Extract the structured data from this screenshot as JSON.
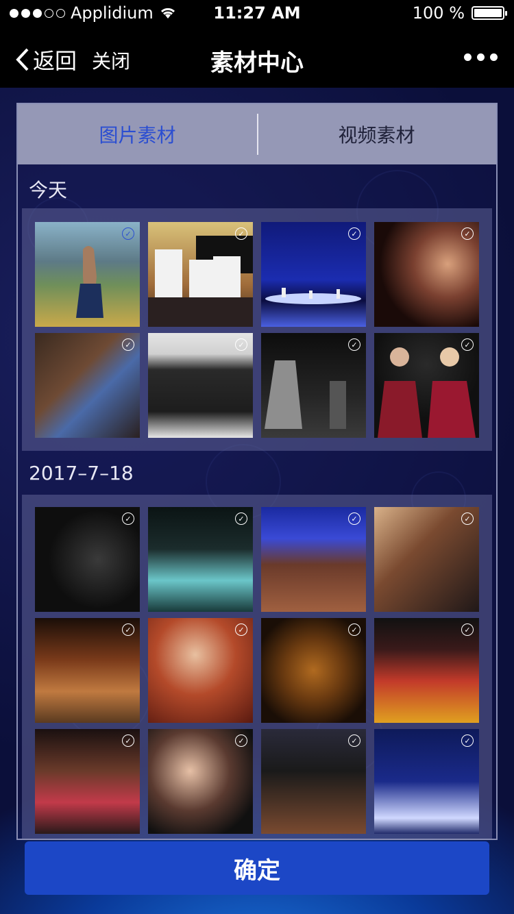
{
  "statusbar": {
    "carrier": "Applidium",
    "time": "11:27 AM",
    "battery": "100 %"
  },
  "navbar": {
    "back_label": "返回",
    "close_label": "关闭",
    "title": "素材中心"
  },
  "tabs": [
    {
      "label": "图片素材"
    },
    {
      "label": "视频素材"
    }
  ],
  "sections": [
    {
      "label": "今天"
    },
    {
      "label": "2017–7–18"
    }
  ],
  "confirm_label": "确定",
  "colors": {
    "accent": "#2b4ed1",
    "button": "#1c47c6",
    "tab_bar": "#9598b6",
    "background": "#0b0f3a"
  }
}
